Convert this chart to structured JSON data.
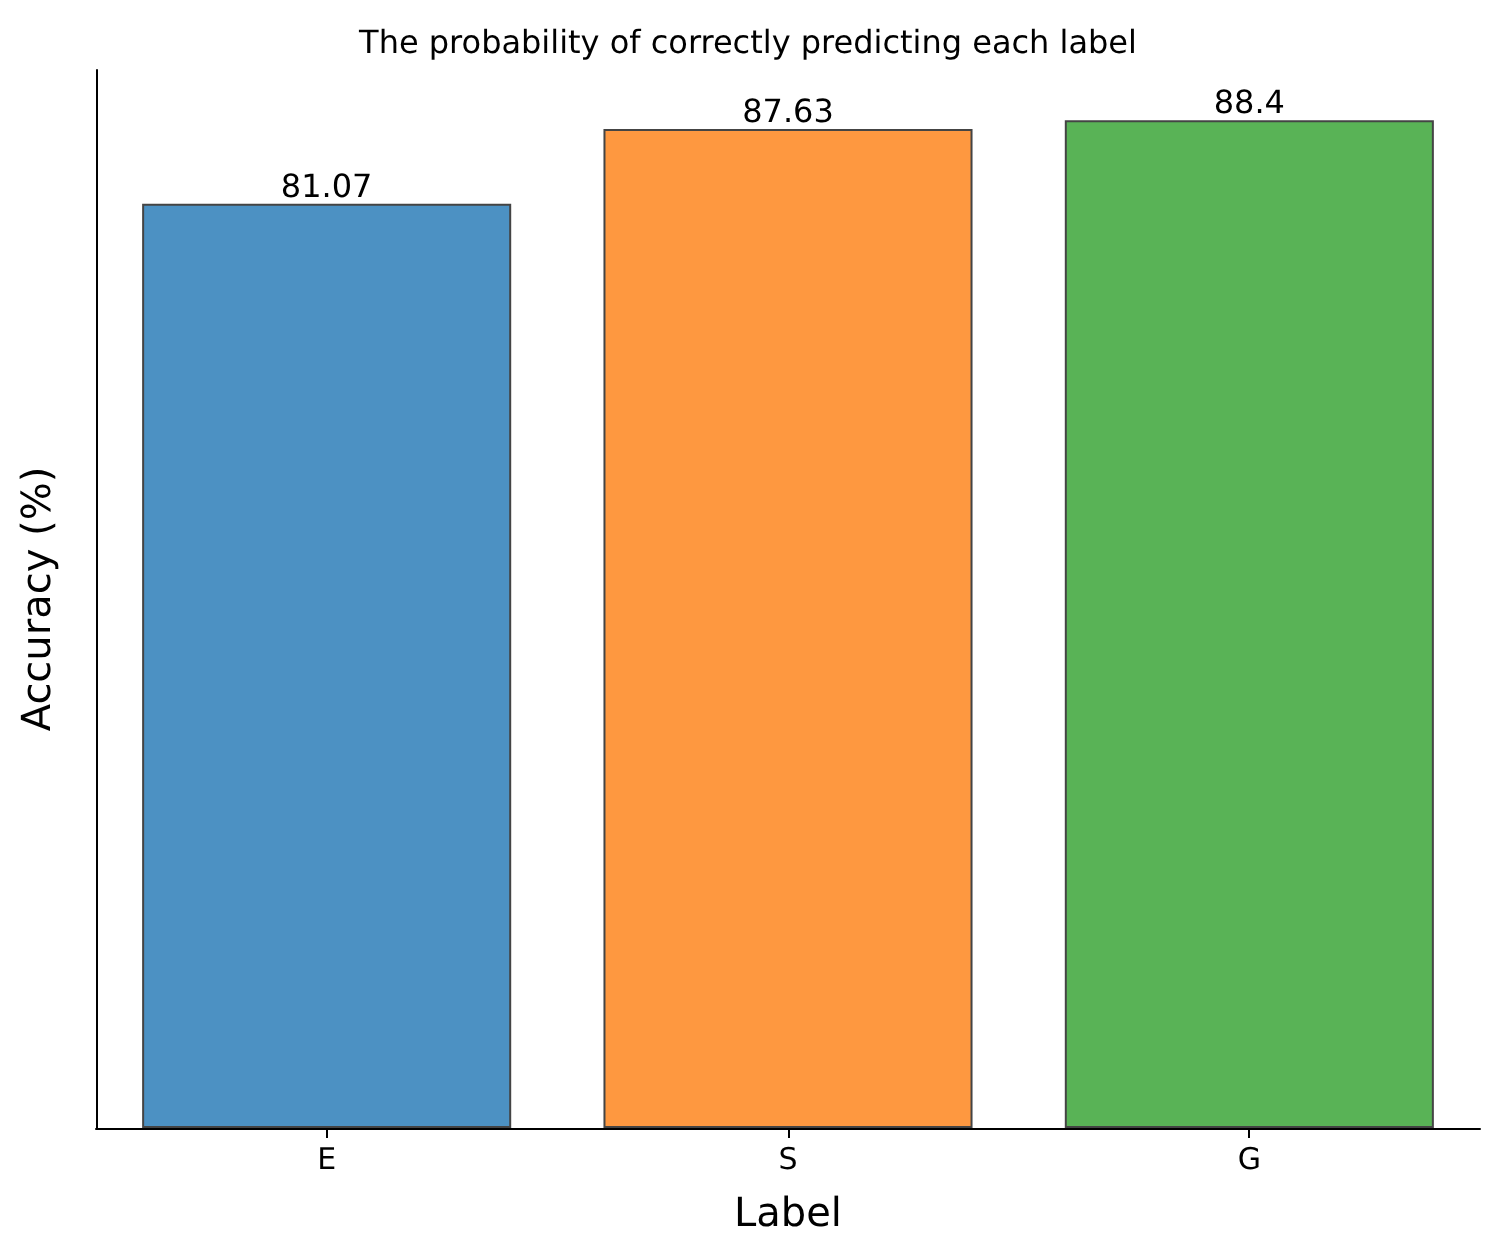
{
  "chart_data": {
    "type": "bar",
    "title": "The probability of correctly predicting each label",
    "xlabel": "Label",
    "ylabel": "Accuracy (%)",
    "categories": [
      "E",
      "S",
      "G"
    ],
    "values": [
      81.07,
      87.63,
      88.4
    ],
    "colors": [
      "#4c91c3",
      "#fe9840",
      "#59b356"
    ],
    "ylim": [
      0,
      92.8
    ],
    "tick_labels": "x",
    "data_labels": true
  }
}
